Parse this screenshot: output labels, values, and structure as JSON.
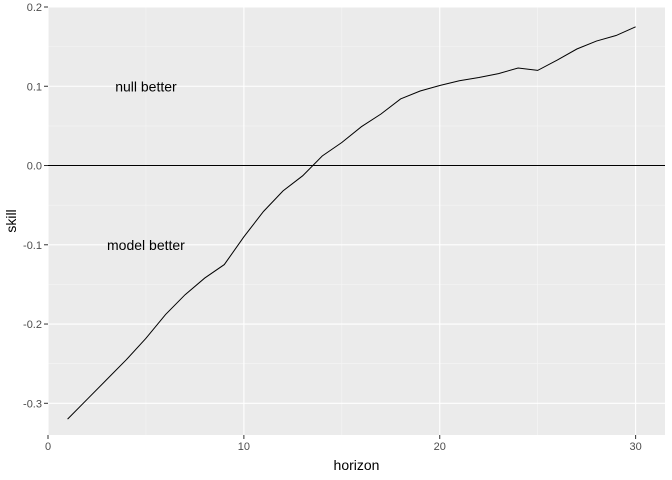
{
  "chart_data": {
    "type": "line",
    "xlabel": "horizon",
    "ylabel": "skill",
    "xlim": [
      0,
      31.5
    ],
    "ylim": [
      -0.34,
      0.2
    ],
    "x_ticks": [
      0,
      10,
      20,
      30
    ],
    "x_tick_labels": [
      "0",
      "10",
      "20",
      "30"
    ],
    "y_ticks": [
      -0.3,
      -0.2,
      -0.1,
      0.0,
      0.1,
      0.2
    ],
    "y_tick_labels": [
      "-0.3",
      "-0.2",
      "-0.1",
      "0.0",
      "0.1",
      "0.2"
    ],
    "grid": true,
    "reference_line": {
      "y": 0.0
    },
    "annotations": [
      {
        "text": "null better",
        "x": 5,
        "y": 0.1
      },
      {
        "text": "model better",
        "x": 5,
        "y": -0.1
      }
    ],
    "series": [
      {
        "x": [
          1,
          2,
          3,
          4,
          5,
          6,
          7,
          8,
          9,
          10,
          11,
          12,
          13,
          14,
          15,
          16,
          17,
          18,
          19,
          20,
          21,
          22,
          23,
          24,
          25,
          26,
          27,
          28,
          29,
          30
        ],
        "values": [
          -0.32,
          -0.295,
          -0.27,
          -0.245,
          -0.218,
          -0.188,
          -0.163,
          -0.142,
          -0.125,
          -0.09,
          -0.058,
          -0.032,
          -0.013,
          0.012,
          0.029,
          0.049,
          0.065,
          0.084,
          0.094,
          0.101,
          0.107,
          0.111,
          0.116,
          0.123,
          0.12,
          0.133,
          0.147,
          0.157,
          0.164,
          0.175
        ]
      }
    ]
  },
  "colors": {
    "panel_background": "#ebebeb",
    "grid_major": "#ffffff",
    "grid_minor": "#f5f5f5",
    "line": "#000000"
  }
}
